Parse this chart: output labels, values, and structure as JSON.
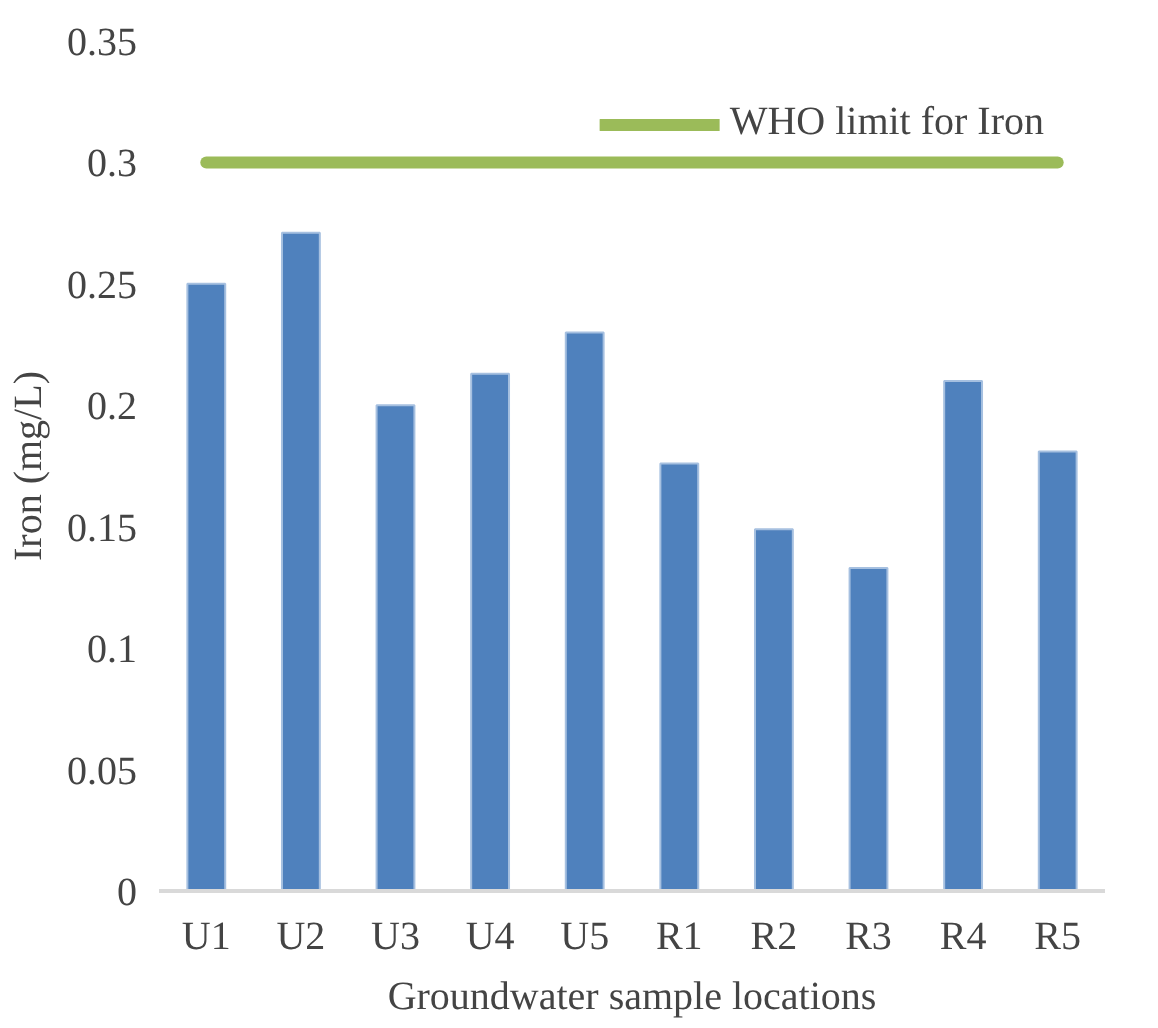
{
  "chart_data": {
    "type": "bar",
    "xlabel": "Groundwater sample locations",
    "ylabel": "Iron (mg/L)",
    "categories": [
      "U1",
      "U2",
      "U3",
      "U4",
      "U5",
      "R1",
      "R2",
      "R3",
      "R4",
      "R5"
    ],
    "series": [
      {
        "color": "#4f81bd",
        "values": [
          0.25,
          0.271,
          0.2,
          0.213,
          0.23,
          0.176,
          0.149,
          0.133,
          0.21,
          0.181
        ]
      },
      {
        "type": "line",
        "name": "WHO limit for Iron",
        "color": "#9bbb59",
        "values": [
          0.3,
          0.3,
          0.3,
          0.3,
          0.3,
          0.3,
          0.3,
          0.3,
          0.3,
          0.3
        ]
      }
    ],
    "ylim": [
      0,
      0.35
    ],
    "yticks": [
      0,
      0.05,
      0.1,
      0.15,
      0.2,
      0.25,
      0.3,
      0.35
    ],
    "grid": false,
    "legend": "top right"
  }
}
